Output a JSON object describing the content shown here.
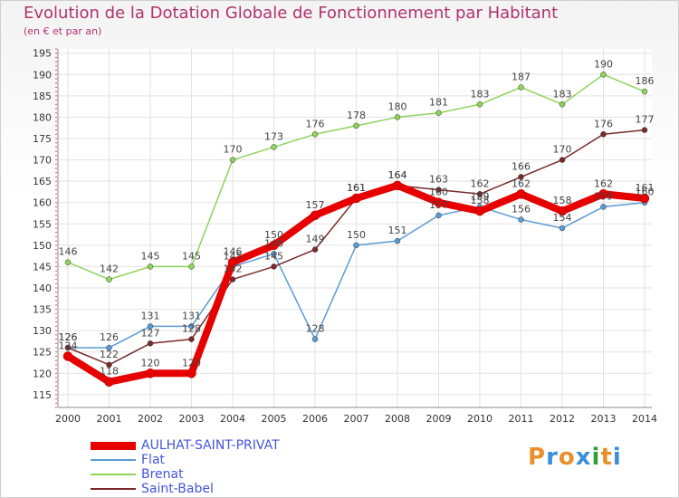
{
  "header": {
    "title": "Evolution de la Dotation Globale de Fonctionnement par Habitant",
    "subtitle": "(en € et par an)"
  },
  "logo": {
    "letters": [
      "P",
      "r",
      "o",
      "x",
      "i",
      "t",
      "i"
    ],
    "colors": [
      "#e8902a",
      "#3a8fd8",
      "#e8902a",
      "#3a8fd8",
      "#2e9e3c",
      "#e8902a",
      "#3a8fd8"
    ]
  },
  "chart_data": {
    "type": "line",
    "title": "Evolution de la Dotation Globale de Fonctionnement par Habitant",
    "ylabel": "(en € et par an)",
    "xlabel": "",
    "x": [
      "2000",
      "2001",
      "2002",
      "2003",
      "2004",
      "2005",
      "2006",
      "2007",
      "2008",
      "2009",
      "2010",
      "2011",
      "2012",
      "2013",
      "2014"
    ],
    "ylim": [
      112,
      196
    ],
    "yticks": [
      115,
      120,
      125,
      130,
      135,
      140,
      145,
      150,
      155,
      160,
      165,
      170,
      175,
      180,
      185,
      190,
      195
    ],
    "grid": true,
    "legend": "bottom-left",
    "series": [
      {
        "name": "AULHAT-SAINT-PRIVAT",
        "color": "#e60000",
        "values": [
          124,
          118,
          120,
          120,
          146,
          150,
          157,
          161,
          164,
          160,
          158,
          162,
          158,
          162,
          161
        ]
      },
      {
        "name": "Flat",
        "color": "#5b9bd5",
        "values": [
          126,
          126,
          131,
          131,
          145,
          148,
          128,
          150,
          151,
          157,
          159,
          156,
          154,
          159,
          160
        ]
      },
      {
        "name": "Brenat",
        "color": "#8fd35a",
        "values": [
          146,
          142,
          145,
          145,
          170,
          173,
          176,
          178,
          180,
          181,
          183,
          187,
          183,
          190,
          186
        ]
      },
      {
        "name": "Saint-Babel",
        "color": "#7a2a2a",
        "values": [
          126,
          122,
          127,
          128,
          142,
          145,
          149,
          161,
          164,
          163,
          162,
          166,
          170,
          176,
          177
        ]
      }
    ]
  }
}
